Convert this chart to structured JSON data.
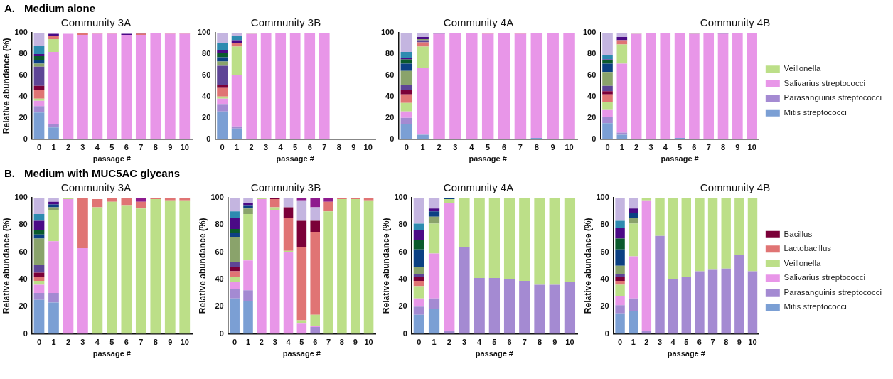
{
  "chart_data": [
    {
      "type": "bar",
      "stacked": true,
      "title": "Community 3A",
      "subtitle": "Medium alone",
      "annotations": [
        "A."
      ],
      "xlabel": "passage #",
      "ylabel": "Relative abundance (%)",
      "categories": [
        "0",
        "1",
        "2",
        "3",
        "4",
        "5",
        "6",
        "7",
        "8",
        "9",
        "10"
      ],
      "ylim": [
        0,
        100
      ],
      "yticks": [
        0,
        20,
        40,
        60,
        80,
        100
      ],
      "legend": false,
      "series": [
        {
          "color": "#7b9fd4",
          "values": [
            25,
            11,
            0,
            0,
            0,
            0,
            0,
            0,
            0,
            0,
            0
          ]
        },
        {
          "color": "#a48ad2",
          "values": [
            6,
            3,
            0,
            0,
            0,
            0,
            0,
            0,
            0,
            0,
            0
          ]
        },
        {
          "color": "#e896e8",
          "values": [
            5,
            68,
            99,
            98,
            99,
            99,
            98,
            98,
            100,
            99,
            99
          ]
        },
        {
          "color": "#bcdf88",
          "values": [
            2,
            12,
            0,
            0,
            0,
            0,
            0,
            0,
            0,
            0,
            0
          ]
        },
        {
          "color": "#e07474",
          "values": [
            8,
            3,
            0,
            2,
            1,
            1,
            0,
            1,
            0,
            1,
            1
          ]
        },
        {
          "color": "#7b0038",
          "values": [
            4,
            0,
            0,
            0,
            0,
            0,
            0,
            1,
            0,
            0,
            0
          ]
        },
        {
          "color": "#5e4596",
          "values": [
            18,
            0,
            0,
            0,
            0,
            0,
            0,
            0,
            0,
            0,
            0
          ]
        },
        {
          "color": "#8aa36b",
          "values": [
            3,
            0,
            0,
            0,
            0,
            0,
            0,
            0,
            0,
            0,
            0
          ]
        },
        {
          "color": "#0c4083",
          "values": [
            3,
            0,
            0,
            0,
            0,
            0,
            0,
            0,
            0,
            0,
            0
          ]
        },
        {
          "color": "#0b5a2c",
          "values": [
            4,
            0,
            0,
            0,
            0,
            0,
            0,
            0,
            0,
            0,
            0
          ]
        },
        {
          "color": "#4b0a86",
          "values": [
            2,
            2,
            0,
            0,
            0,
            0,
            1,
            0,
            0,
            0,
            0
          ]
        },
        {
          "color": "#2e8bb0",
          "values": [
            8,
            0,
            0,
            0,
            0,
            0,
            0,
            0,
            0,
            0,
            0
          ]
        },
        {
          "color": "#c4b5e0",
          "values": [
            12,
            null,
            null,
            0,
            0,
            0,
            null,
            0,
            0,
            0,
            0
          ]
        }
      ]
    },
    {
      "type": "bar",
      "stacked": true,
      "title": "Community 3B",
      "xlabel": "passage #",
      "categories": [
        "0",
        "1",
        "2",
        "3",
        "4",
        "5",
        "6",
        "7",
        "8",
        "9",
        "10"
      ],
      "ylim": [
        0,
        100
      ],
      "yticks": [
        0,
        20,
        40,
        60,
        80,
        100
      ],
      "legend": false,
      "series": [
        {
          "color": "#7b9fd4",
          "values": [
            26,
            10,
            0,
            0,
            0,
            0,
            0,
            0,
            null,
            null,
            null
          ]
        },
        {
          "color": "#a48ad2",
          "values": [
            7,
            2,
            0,
            0,
            0,
            0,
            0,
            0,
            null,
            null,
            null
          ]
        },
        {
          "color": "#e896e8",
          "values": [
            5,
            48,
            99,
            100,
            100,
            100,
            100,
            100,
            null,
            null,
            null
          ]
        },
        {
          "color": "#bcdf88",
          "values": [
            2,
            27,
            1,
            0,
            0,
            0,
            0,
            0,
            null,
            null,
            null
          ]
        },
        {
          "color": "#e07474",
          "values": [
            8,
            3,
            0,
            0,
            0,
            0,
            0,
            0,
            null,
            null,
            null
          ]
        },
        {
          "color": "#7b0038",
          "values": [
            3,
            0,
            0,
            0,
            0,
            0,
            0,
            0,
            null,
            null,
            null
          ]
        },
        {
          "color": "#5e4596",
          "values": [
            18,
            0,
            0,
            0,
            0,
            0,
            0,
            0,
            null,
            null,
            null
          ]
        },
        {
          "color": "#8aa36b",
          "values": [
            4,
            0,
            0,
            0,
            0,
            0,
            0,
            0,
            null,
            null,
            null
          ]
        },
        {
          "color": "#0c4083",
          "values": [
            4,
            0,
            0,
            0,
            0,
            0,
            0,
            0,
            null,
            null,
            null
          ]
        },
        {
          "color": "#0b5a2c",
          "values": [
            4,
            0,
            0,
            0,
            0,
            0,
            0,
            0,
            null,
            null,
            null
          ]
        },
        {
          "color": "#4b0a86",
          "values": [
            3,
            3,
            0,
            0,
            0,
            0,
            0,
            0,
            null,
            null,
            null
          ]
        },
        {
          "color": "#2e8bb0",
          "values": [
            6,
            4,
            0,
            0,
            0,
            0,
            0,
            0,
            null,
            null,
            null
          ]
        },
        {
          "color": "#c4b5e0",
          "values": [
            10,
            3,
            0,
            0,
            0,
            0,
            0,
            0,
            null,
            null,
            null
          ]
        }
      ]
    },
    {
      "type": "bar",
      "stacked": true,
      "title": "Community 4A",
      "xlabel": "passage #",
      "categories": [
        "0",
        "1",
        "2",
        "3",
        "4",
        "5",
        "6",
        "7",
        "8",
        "9",
        "10"
      ],
      "ylim": [
        0,
        100
      ],
      "yticks": [
        0,
        20,
        40,
        60,
        80,
        100
      ],
      "legend": false,
      "series": [
        {
          "color": "#7b9fd4",
          "values": [
            14,
            4,
            0,
            0,
            0,
            0,
            0,
            0,
            1,
            0,
            0
          ]
        },
        {
          "color": "#a48ad2",
          "values": [
            6,
            0,
            0,
            0,
            0,
            0,
            0,
            0,
            0,
            0,
            0
          ]
        },
        {
          "color": "#e896e8",
          "values": [
            6,
            63,
            99,
            100,
            100,
            99,
            100,
            99,
            99,
            100,
            100
          ]
        },
        {
          "color": "#bcdf88",
          "values": [
            8,
            20,
            0,
            0,
            0,
            0,
            0,
            0,
            0,
            0,
            0
          ]
        },
        {
          "color": "#e07474",
          "values": [
            8,
            4,
            0,
            0,
            0,
            1,
            0,
            1,
            0,
            0,
            0
          ]
        },
        {
          "color": "#7b0038",
          "values": [
            4,
            0,
            0,
            0,
            0,
            0,
            0,
            0,
            0,
            0,
            0
          ]
        },
        {
          "color": "#5e4596",
          "values": [
            5,
            2,
            1,
            0,
            0,
            0,
            0,
            0,
            0,
            0,
            0
          ]
        },
        {
          "color": "#8aa36b",
          "values": [
            13,
            1,
            0,
            0,
            0,
            0,
            0,
            0,
            0,
            0,
            0
          ]
        },
        {
          "color": "#0c4083",
          "values": [
            7,
            0,
            0,
            0,
            0,
            0,
            0,
            0,
            0,
            0,
            0
          ]
        },
        {
          "color": "#0b5a2c",
          "values": [
            4,
            0,
            0,
            0,
            0,
            0,
            0,
            0,
            0,
            0,
            0
          ]
        },
        {
          "color": "#4b0a86",
          "values": [
            1,
            2,
            0,
            0,
            0,
            0,
            0,
            0,
            0,
            0,
            0
          ]
        },
        {
          "color": "#2e8bb0",
          "values": [
            6,
            0,
            0,
            0,
            0,
            0,
            0,
            0,
            0,
            0,
            0
          ]
        },
        {
          "color": "#c4b5e0",
          "values": [
            18,
            4,
            0,
            0,
            0,
            0,
            0,
            0,
            0,
            0,
            0
          ]
        }
      ]
    },
    {
      "type": "bar",
      "stacked": true,
      "title": "Community 4B",
      "xlabel": "passage #",
      "categories": [
        "0",
        "1",
        "2",
        "3",
        "4",
        "5",
        "6",
        "7",
        "8",
        "9",
        "10"
      ],
      "ylim": [
        0,
        100
      ],
      "yticks": [
        0,
        20,
        40,
        60,
        80,
        100
      ],
      "legend": "right",
      "series": [
        {
          "name": "Mitis streptococci",
          "color": "#7b9fd4",
          "values": [
            15,
            4,
            0,
            0,
            0,
            1,
            0,
            0,
            0,
            0,
            0
          ]
        },
        {
          "name": "Parasanguinis streptococci",
          "color": "#a48ad2",
          "values": [
            6,
            2,
            0,
            0,
            0,
            0,
            0,
            0,
            0,
            0,
            0
          ]
        },
        {
          "name": "Salivarius streptococci",
          "color": "#e896e8",
          "values": [
            7,
            65,
            99,
            100,
            100,
            99,
            99,
            100,
            99,
            100,
            100
          ]
        },
        {
          "name": "Veillonella",
          "color": "#bcdf88",
          "values": [
            7,
            18,
            1,
            0,
            0,
            0,
            0,
            0,
            0,
            0,
            0
          ]
        },
        {
          "color": "#e07474",
          "values": [
            7,
            4,
            0,
            0,
            0,
            0,
            0,
            0,
            0,
            0,
            0
          ]
        },
        {
          "color": "#7b0038",
          "values": [
            3,
            0,
            0,
            0,
            0,
            0,
            0,
            0,
            0,
            0,
            0
          ]
        },
        {
          "color": "#5e4596",
          "values": [
            5,
            0,
            0,
            0,
            0,
            0,
            0,
            0,
            1,
            0,
            0
          ]
        },
        {
          "color": "#8aa36b",
          "values": [
            13,
            0,
            0,
            0,
            0,
            0,
            1,
            0,
            0,
            0,
            0
          ]
        },
        {
          "color": "#0c4083",
          "values": [
            8,
            0,
            0,
            0,
            0,
            0,
            0,
            0,
            0,
            0,
            0
          ]
        },
        {
          "color": "#0b5a2c",
          "values": [
            3,
            0,
            0,
            0,
            0,
            0,
            0,
            0,
            0,
            0,
            0
          ]
        },
        {
          "color": "#4b0a86",
          "values": [
            1,
            3,
            0,
            0,
            0,
            0,
            0,
            0,
            0,
            0,
            0
          ]
        },
        {
          "color": "#2e8bb0",
          "values": [
            4,
            0,
            0,
            0,
            0,
            0,
            0,
            0,
            0,
            0,
            0
          ]
        },
        {
          "color": "#c4b5e0",
          "values": [
            21,
            4,
            0,
            0,
            0,
            0,
            0,
            0,
            0,
            0,
            0
          ]
        }
      ]
    },
    {
      "type": "bar",
      "stacked": true,
      "title": "Community 3A",
      "subtitle": "Medium with MUC5AC glycans",
      "annotations": [
        "B."
      ],
      "xlabel": "passage #",
      "ylabel": "Relative abundance (%)",
      "categories": [
        "0",
        "1",
        "2",
        "3",
        "4",
        "5",
        "6",
        "7",
        "8",
        "9",
        "10"
      ],
      "ylim": [
        0,
        100
      ],
      "yticks": [
        0,
        20,
        40,
        60,
        80,
        100
      ],
      "legend": false,
      "series": [
        {
          "color": "#7b9fd4",
          "values": [
            25,
            23,
            0,
            0,
            0,
            0,
            0,
            0,
            0,
            0,
            0
          ]
        },
        {
          "color": "#a48ad2",
          "values": [
            5,
            7,
            0,
            0,
            0,
            0,
            0,
            0,
            0,
            0,
            0
          ]
        },
        {
          "color": "#e896e8",
          "values": [
            6,
            38,
            99,
            63,
            null,
            0,
            0,
            0,
            0,
            0,
            0
          ]
        },
        {
          "color": "#bcdf88",
          "values": [
            3,
            23,
            1,
            0,
            93,
            97,
            94,
            92,
            99,
            98,
            98
          ]
        },
        {
          "color": "#e07474",
          "values": [
            3,
            0,
            0,
            37,
            6,
            3,
            6,
            5,
            1,
            2,
            2
          ]
        },
        {
          "color": "#7b0038",
          "values": [
            3,
            0,
            0,
            0,
            0,
            0,
            0,
            0,
            0,
            0,
            0
          ]
        },
        {
          "color": "#5e4596",
          "values": [
            6,
            0,
            0,
            0,
            0,
            0,
            0,
            0,
            0,
            0,
            0
          ]
        },
        {
          "color": "#8aa36b",
          "values": [
            19,
            2,
            0,
            0,
            0,
            0,
            0,
            0,
            0,
            0,
            0
          ]
        },
        {
          "color": "#0c4083",
          "values": [
            3,
            2,
            0,
            0,
            0,
            0,
            0,
            0,
            0,
            0,
            0
          ]
        },
        {
          "color": "#0b5a2c",
          "values": [
            3,
            0,
            0,
            0,
            0,
            0,
            0,
            0,
            0,
            0,
            0
          ]
        },
        {
          "color": "#4b0a86",
          "values": [
            7,
            2,
            0,
            0,
            0,
            0,
            0,
            0,
            0,
            0,
            0
          ]
        },
        {
          "color": "#2e8bb0",
          "values": [
            5,
            0,
            0,
            0,
            0,
            0,
            0,
            0,
            0,
            0,
            0
          ]
        },
        {
          "color": "#c4b5e0",
          "values": [
            12,
            3,
            0,
            0,
            0,
            0,
            0,
            0,
            0,
            0,
            0
          ]
        },
        {
          "color": "#8e1a8e",
          "values": [
            0,
            0,
            0,
            0,
            0,
            0,
            0,
            3,
            0,
            0,
            0
          ]
        }
      ]
    },
    {
      "type": "bar",
      "stacked": true,
      "title": "Community 3B",
      "xlabel": "passage #",
      "ylabel": "Relative abundance (%)",
      "categories": [
        "0",
        "1",
        "2",
        "3",
        "4",
        "5",
        "6",
        "7",
        "8",
        "9",
        "10"
      ],
      "ylim": [
        0,
        100
      ],
      "yticks": [
        0,
        20,
        40,
        60,
        80,
        100
      ],
      "legend": false,
      "series": [
        {
          "color": "#7b9fd4",
          "values": [
            26,
            24,
            0,
            0,
            0,
            0,
            0,
            0,
            0,
            0,
            0
          ]
        },
        {
          "color": "#a48ad2",
          "values": [
            7,
            8,
            0,
            0,
            0,
            0,
            5,
            0,
            0,
            0,
            0
          ]
        },
        {
          "color": "#e896e8",
          "values": [
            5,
            22,
            99,
            91,
            60,
            8,
            1,
            0,
            0,
            0,
            0
          ]
        },
        {
          "color": "#bcdf88",
          "values": [
            4,
            34,
            1,
            2,
            1,
            2,
            8,
            90,
            99,
            99,
            98
          ]
        },
        {
          "color": "#e07474",
          "values": [
            4,
            0,
            0,
            6,
            24,
            54,
            61,
            7,
            1,
            1,
            2
          ]
        },
        {
          "color": "#7b0038",
          "values": [
            3,
            0,
            0,
            1,
            8,
            19,
            8,
            0,
            0,
            0,
            0
          ]
        },
        {
          "color": "#5e4596",
          "values": [
            4,
            0,
            0,
            0,
            0,
            0,
            0,
            0,
            0,
            0,
            0
          ]
        },
        {
          "color": "#8aa36b",
          "values": [
            18,
            4,
            0,
            0,
            0,
            0,
            0,
            0,
            0,
            0,
            0
          ]
        },
        {
          "color": "#0c4083",
          "values": [
            3,
            2,
            0,
            0,
            0,
            0,
            0,
            0,
            0,
            0,
            0
          ]
        },
        {
          "color": "#0b5a2c",
          "values": [
            3,
            0,
            0,
            0,
            0,
            0,
            0,
            0,
            0,
            0,
            0
          ]
        },
        {
          "color": "#4b0a86",
          "values": [
            8,
            2,
            0,
            0,
            0,
            0,
            0,
            0,
            0,
            0,
            0
          ]
        },
        {
          "color": "#2e8bb0",
          "values": [
            5,
            0,
            0,
            0,
            0,
            0,
            0,
            0,
            0,
            0,
            0
          ]
        },
        {
          "color": "#c4b5e0",
          "values": [
            10,
            4,
            0,
            0,
            7,
            15,
            10,
            0,
            0,
            0,
            0
          ]
        },
        {
          "color": "#8e1a8e",
          "values": [
            0,
            0,
            0,
            0,
            0,
            2,
            7,
            3,
            0,
            0,
            0
          ]
        }
      ]
    },
    {
      "type": "bar",
      "stacked": true,
      "title": "Community 4A",
      "xlabel": "passage #",
      "ylabel": "Relative abundance (%)",
      "categories": [
        "0",
        "1",
        "2",
        "3",
        "4",
        "5",
        "6",
        "7",
        "8",
        "9",
        "10"
      ],
      "ylim": [
        0,
        100
      ],
      "yticks": [
        0,
        20,
        40,
        60,
        80,
        100
      ],
      "legend": false,
      "series": [
        {
          "color": "#7b9fd4",
          "values": [
            14,
            18,
            0,
            0,
            0,
            0,
            0,
            0,
            0,
            0,
            0
          ]
        },
        {
          "color": "#a48ad2",
          "values": [
            6,
            8,
            2,
            64,
            41,
            41,
            40,
            39,
            36,
            36,
            38
          ]
        },
        {
          "color": "#e896e8",
          "values": [
            6,
            33,
            94,
            0,
            0,
            0,
            0,
            0,
            0,
            0,
            0
          ]
        },
        {
          "color": "#bcdf88",
          "values": [
            9,
            22,
            3,
            36,
            59,
            59,
            60,
            61,
            64,
            64,
            62
          ]
        },
        {
          "color": "#e07474",
          "values": [
            4,
            0,
            0,
            0,
            0,
            0,
            0,
            0,
            0,
            0,
            0
          ]
        },
        {
          "color": "#7b0038",
          "values": [
            3,
            0,
            0,
            0,
            0,
            0,
            0,
            0,
            0,
            0,
            0
          ]
        },
        {
          "color": "#5e4596",
          "values": [
            2,
            0,
            0,
            0,
            0,
            0,
            0,
            0,
            0,
            0,
            0
          ]
        },
        {
          "color": "#8aa36b",
          "values": [
            5,
            5,
            0,
            0,
            0,
            0,
            0,
            0,
            0,
            0,
            0
          ]
        },
        {
          "color": "#0c4083",
          "values": [
            13,
            4,
            1,
            0,
            0,
            0,
            0,
            0,
            0,
            0,
            0
          ]
        },
        {
          "color": "#0b5a2c",
          "values": [
            7,
            0,
            0,
            0,
            0,
            0,
            0,
            0,
            0,
            0,
            0
          ]
        },
        {
          "color": "#4b0a86",
          "values": [
            7,
            2,
            0,
            0,
            0,
            0,
            0,
            0,
            0,
            0,
            0
          ]
        },
        {
          "color": "#2e8bb0",
          "values": [
            5,
            0,
            0,
            0,
            0,
            0,
            0,
            0,
            0,
            0,
            0
          ]
        },
        {
          "color": "#c4b5e0",
          "values": [
            19,
            8,
            0,
            0,
            0,
            0,
            0,
            0,
            0,
            0,
            0
          ]
        }
      ]
    },
    {
      "type": "bar",
      "stacked": true,
      "title": "Community 4B",
      "xlabel": "passage #",
      "ylabel": "Relative abundance (%)",
      "categories": [
        "0",
        "1",
        "2",
        "3",
        "4",
        "5",
        "6",
        "7",
        "8",
        "9",
        "10"
      ],
      "ylim": [
        0,
        100
      ],
      "yticks": [
        0,
        20,
        40,
        60,
        80,
        100
      ],
      "legend": "right",
      "series": [
        {
          "name": "Mitis streptococci",
          "color": "#7b9fd4",
          "values": [
            15,
            17,
            0,
            0,
            0,
            0,
            0,
            0,
            0,
            0,
            0
          ]
        },
        {
          "name": "Parasanguinis streptococci",
          "color": "#a48ad2",
          "values": [
            6,
            9,
            2,
            72,
            40,
            42,
            46,
            47,
            48,
            58,
            46
          ]
        },
        {
          "name": "Salivarius streptococci",
          "color": "#e896e8",
          "values": [
            7,
            31,
            96,
            0,
            0,
            0,
            0,
            0,
            0,
            0,
            0
          ]
        },
        {
          "name": "Veillonella",
          "color": "#bcdf88",
          "values": [
            8,
            24,
            2,
            28,
            60,
            58,
            54,
            53,
            52,
            42,
            54
          ]
        },
        {
          "name": "Lactobacillus",
          "color": "#e07474",
          "values": [
            3,
            0,
            0,
            0,
            0,
            0,
            0,
            0,
            0,
            0,
            0
          ]
        },
        {
          "name": "Bacillus",
          "color": "#7b0038",
          "values": [
            3,
            0,
            0,
            0,
            0,
            0,
            0,
            0,
            0,
            0,
            0
          ]
        },
        {
          "color": "#5e4596",
          "values": [
            2,
            0,
            0,
            0,
            0,
            0,
            0,
            0,
            0,
            0,
            0
          ]
        },
        {
          "color": "#8aa36b",
          "values": [
            6,
            4,
            0,
            0,
            0,
            0,
            0,
            0,
            0,
            0,
            0
          ]
        },
        {
          "color": "#0c4083",
          "values": [
            12,
            4,
            0,
            0,
            0,
            0,
            0,
            0,
            0,
            0,
            0
          ]
        },
        {
          "color": "#0b5a2c",
          "values": [
            8,
            0,
            0,
            0,
            0,
            0,
            0,
            0,
            0,
            0,
            0
          ]
        },
        {
          "color": "#4b0a86",
          "values": [
            8,
            3,
            0,
            0,
            0,
            0,
            0,
            0,
            0,
            0,
            0
          ]
        },
        {
          "color": "#2e8bb0",
          "values": [
            5,
            0,
            0,
            0,
            0,
            0,
            0,
            0,
            0,
            0,
            0
          ]
        },
        {
          "color": "#c4b5e0",
          "values": [
            17,
            8,
            0,
            0,
            0,
            0,
            0,
            0,
            0,
            0,
            0
          ]
        }
      ]
    }
  ]
}
